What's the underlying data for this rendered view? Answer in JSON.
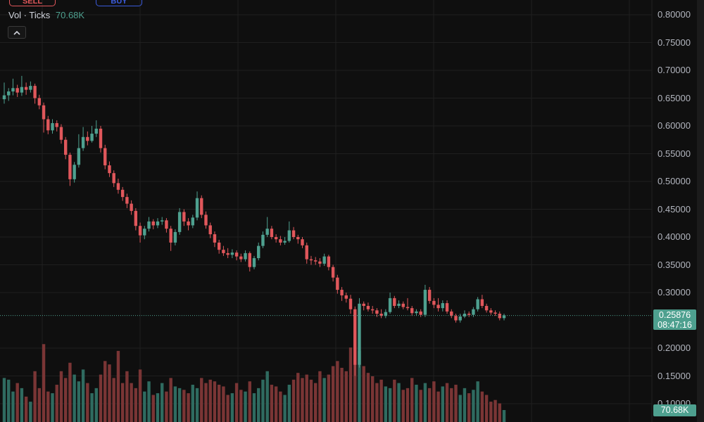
{
  "toolbar": {
    "sell_label": "SELL",
    "buy_label": "BUY"
  },
  "legend": {
    "label": "Vol · Ticks",
    "value": "70.68K"
  },
  "collapse_icon": "chevron-up-icon",
  "price_tag": {
    "price": "0.25876",
    "countdown": "08:47:16"
  },
  "volume_tag": "70.68K",
  "colors": {
    "up": "#4ea08f",
    "down": "#e0575b",
    "up_volume": "#2f6b60",
    "down_volume": "#7a3535",
    "grid": "#1f1f1f",
    "background": "#0f0f0f"
  },
  "chart_data": {
    "type": "candlestick",
    "y_ticks": [
      "0.80000",
      "0.75000",
      "0.70000",
      "0.65000",
      "0.60000",
      "0.55000",
      "0.50000",
      "0.45000",
      "0.40000",
      "0.35000",
      "0.30000",
      "0.20000",
      "0.15000",
      "0.10000"
    ],
    "ylim": [
      0.1,
      0.8
    ],
    "grid": true,
    "last_price": 0.25876,
    "ohlc": [
      [
        0.648,
        0.678,
        0.64,
        0.655
      ],
      [
        0.655,
        0.668,
        0.645,
        0.662
      ],
      [
        0.662,
        0.685,
        0.655,
        0.668
      ],
      [
        0.668,
        0.674,
        0.652,
        0.66
      ],
      [
        0.66,
        0.69,
        0.654,
        0.67
      ],
      [
        0.67,
        0.678,
        0.656,
        0.665
      ],
      [
        0.665,
        0.68,
        0.66,
        0.672
      ],
      [
        0.672,
        0.676,
        0.64,
        0.65
      ],
      [
        0.65,
        0.656,
        0.63,
        0.637
      ],
      [
        0.637,
        0.642,
        0.588,
        0.612
      ],
      [
        0.612,
        0.618,
        0.585,
        0.592
      ],
      [
        0.592,
        0.612,
        0.586,
        0.605
      ],
      [
        0.605,
        0.61,
        0.59,
        0.598
      ],
      [
        0.598,
        0.603,
        0.568,
        0.575
      ],
      [
        0.575,
        0.58,
        0.54,
        0.548
      ],
      [
        0.548,
        0.552,
        0.492,
        0.504
      ],
      [
        0.504,
        0.535,
        0.498,
        0.53
      ],
      [
        0.53,
        0.585,
        0.525,
        0.56
      ],
      [
        0.56,
        0.598,
        0.555,
        0.58
      ],
      [
        0.58,
        0.59,
        0.565,
        0.573
      ],
      [
        0.573,
        0.6,
        0.57,
        0.586
      ],
      [
        0.586,
        0.61,
        0.58,
        0.595
      ],
      [
        0.595,
        0.6,
        0.552,
        0.56
      ],
      [
        0.56,
        0.566,
        0.522,
        0.529
      ],
      [
        0.529,
        0.536,
        0.508,
        0.515
      ],
      [
        0.515,
        0.52,
        0.49,
        0.497
      ],
      [
        0.497,
        0.505,
        0.478,
        0.485
      ],
      [
        0.485,
        0.49,
        0.465,
        0.472
      ],
      [
        0.472,
        0.478,
        0.452,
        0.46
      ],
      [
        0.46,
        0.466,
        0.44,
        0.447
      ],
      [
        0.447,
        0.452,
        0.412,
        0.42
      ],
      [
        0.42,
        0.426,
        0.39,
        0.403
      ],
      [
        0.403,
        0.42,
        0.396,
        0.415
      ],
      [
        0.415,
        0.436,
        0.41,
        0.428
      ],
      [
        0.428,
        0.432,
        0.414,
        0.421
      ],
      [
        0.421,
        0.434,
        0.416,
        0.428
      ],
      [
        0.428,
        0.436,
        0.422,
        0.43
      ],
      [
        0.43,
        0.434,
        0.408,
        0.415
      ],
      [
        0.415,
        0.42,
        0.375,
        0.39
      ],
      [
        0.39,
        0.414,
        0.385,
        0.409
      ],
      [
        0.409,
        0.452,
        0.404,
        0.445
      ],
      [
        0.445,
        0.45,
        0.42,
        0.428
      ],
      [
        0.428,
        0.434,
        0.412,
        0.421
      ],
      [
        0.421,
        0.44,
        0.416,
        0.435
      ],
      [
        0.435,
        0.482,
        0.43,
        0.47
      ],
      [
        0.47,
        0.475,
        0.434,
        0.44
      ],
      [
        0.44,
        0.446,
        0.415,
        0.421
      ],
      [
        0.421,
        0.426,
        0.398,
        0.405
      ],
      [
        0.405,
        0.41,
        0.382,
        0.39
      ],
      [
        0.39,
        0.395,
        0.37,
        0.377
      ],
      [
        0.377,
        0.384,
        0.366,
        0.371
      ],
      [
        0.371,
        0.38,
        0.362,
        0.368
      ],
      [
        0.368,
        0.378,
        0.362,
        0.372
      ],
      [
        0.372,
        0.376,
        0.358,
        0.365
      ],
      [
        0.365,
        0.37,
        0.355,
        0.36
      ],
      [
        0.36,
        0.376,
        0.356,
        0.371
      ],
      [
        0.371,
        0.374,
        0.338,
        0.346
      ],
      [
        0.346,
        0.366,
        0.342,
        0.362
      ],
      [
        0.362,
        0.39,
        0.358,
        0.384
      ],
      [
        0.384,
        0.41,
        0.38,
        0.404
      ],
      [
        0.404,
        0.436,
        0.4,
        0.415
      ],
      [
        0.415,
        0.42,
        0.396,
        0.4
      ],
      [
        0.4,
        0.405,
        0.39,
        0.396
      ],
      [
        0.396,
        0.402,
        0.385,
        0.39
      ],
      [
        0.39,
        0.4,
        0.386,
        0.393
      ],
      [
        0.393,
        0.428,
        0.39,
        0.412
      ],
      [
        0.412,
        0.418,
        0.396,
        0.4
      ],
      [
        0.4,
        0.404,
        0.388,
        0.396
      ],
      [
        0.396,
        0.4,
        0.38,
        0.385
      ],
      [
        0.385,
        0.39,
        0.352,
        0.36
      ],
      [
        0.36,
        0.366,
        0.35,
        0.358
      ],
      [
        0.358,
        0.364,
        0.35,
        0.356
      ],
      [
        0.356,
        0.362,
        0.346,
        0.352
      ],
      [
        0.352,
        0.37,
        0.348,
        0.365
      ],
      [
        0.365,
        0.368,
        0.34,
        0.346
      ],
      [
        0.346,
        0.35,
        0.32,
        0.327
      ],
      [
        0.327,
        0.332,
        0.298,
        0.305
      ],
      [
        0.305,
        0.31,
        0.285,
        0.295
      ],
      [
        0.295,
        0.3,
        0.282,
        0.289
      ],
      [
        0.289,
        0.296,
        0.262,
        0.27
      ],
      [
        0.27,
        0.275,
        0.15,
        0.17
      ],
      [
        0.17,
        0.29,
        0.165,
        0.28
      ],
      [
        0.28,
        0.284,
        0.268,
        0.276
      ],
      [
        0.276,
        0.282,
        0.266,
        0.27
      ],
      [
        0.27,
        0.276,
        0.262,
        0.268
      ],
      [
        0.268,
        0.272,
        0.256,
        0.262
      ],
      [
        0.262,
        0.27,
        0.254,
        0.258
      ],
      [
        0.258,
        0.27,
        0.254,
        0.265
      ],
      [
        0.265,
        0.3,
        0.262,
        0.29
      ],
      [
        0.29,
        0.294,
        0.272,
        0.276
      ],
      [
        0.276,
        0.286,
        0.272,
        0.28
      ],
      [
        0.28,
        0.284,
        0.27,
        0.274
      ],
      [
        0.274,
        0.29,
        0.268,
        0.272
      ],
      [
        0.272,
        0.276,
        0.258,
        0.263
      ],
      [
        0.263,
        0.27,
        0.258,
        0.266
      ],
      [
        0.266,
        0.27,
        0.256,
        0.26
      ],
      [
        0.26,
        0.314,
        0.256,
        0.305
      ],
      [
        0.305,
        0.31,
        0.28,
        0.285
      ],
      [
        0.285,
        0.29,
        0.272,
        0.278
      ],
      [
        0.278,
        0.29,
        0.266,
        0.272
      ],
      [
        0.272,
        0.286,
        0.266,
        0.281
      ],
      [
        0.281,
        0.286,
        0.262,
        0.266
      ],
      [
        0.266,
        0.27,
        0.254,
        0.258
      ],
      [
        0.258,
        0.262,
        0.246,
        0.25
      ],
      [
        0.25,
        0.262,
        0.246,
        0.257
      ],
      [
        0.257,
        0.268,
        0.254,
        0.262
      ],
      [
        0.262,
        0.266,
        0.256,
        0.26
      ],
      [
        0.26,
        0.274,
        0.256,
        0.27
      ],
      [
        0.27,
        0.292,
        0.266,
        0.288
      ],
      [
        0.288,
        0.296,
        0.272,
        0.276
      ],
      [
        0.276,
        0.28,
        0.264,
        0.268
      ],
      [
        0.268,
        0.272,
        0.26,
        0.264
      ],
      [
        0.264,
        0.268,
        0.258,
        0.262
      ],
      [
        0.262,
        0.266,
        0.25,
        0.254
      ],
      [
        0.254,
        0.262,
        0.25,
        0.259
      ]
    ],
    "volume_k": [
      260,
      250,
      180,
      230,
      200,
      150,
      120,
      300,
      200,
      460,
      180,
      170,
      220,
      300,
      260,
      350,
      280,
      240,
      310,
      230,
      170,
      200,
      280,
      360,
      340,
      260,
      420,
      230,
      300,
      230,
      200,
      310,
      180,
      240,
      160,
      170,
      230,
      180,
      260,
      210,
      200,
      190,
      170,
      220,
      200,
      260,
      230,
      250,
      240,
      220,
      210,
      160,
      170,
      230,
      190,
      180,
      240,
      170,
      200,
      250,
      300,
      220,
      210,
      180,
      160,
      220,
      250,
      290,
      260,
      280,
      250,
      230,
      300,
      260,
      280,
      330,
      360,
      320,
      300,
      440,
      540,
      420,
      330,
      290,
      270,
      230,
      250,
      210,
      200,
      250,
      230,
      190,
      200,
      260,
      220,
      190,
      230,
      200,
      240,
      180,
      210,
      230,
      200,
      220,
      160,
      200,
      170,
      190,
      240,
      180,
      160,
      120,
      130,
      110,
      70.68
    ]
  }
}
